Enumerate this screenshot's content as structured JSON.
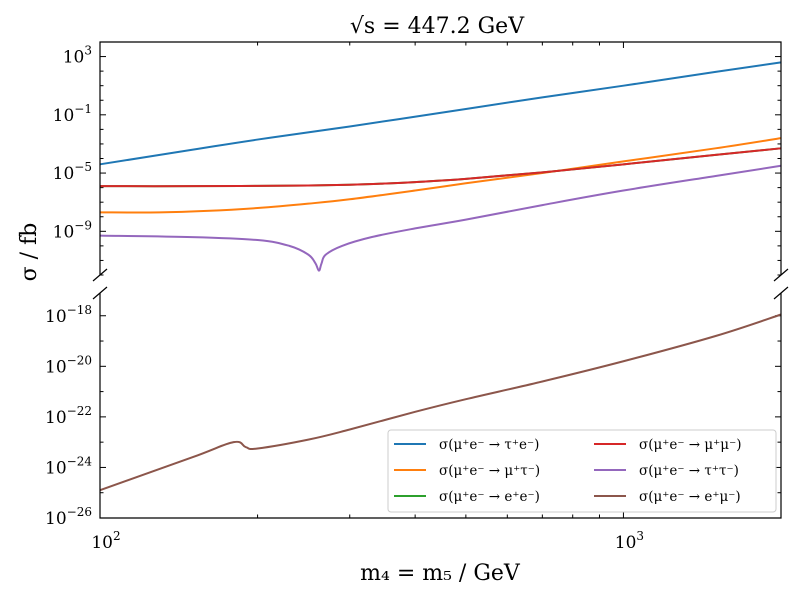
{
  "chart_data": {
    "type": "line",
    "title": "√s = 447.2 GeV",
    "xlabel": "m₄ = m₅ / GeV",
    "ylabel": "σ / fb",
    "xscale": "log",
    "yscale": "log",
    "xlim": [
      100,
      2000
    ],
    "x_ticks": [
      {
        "base": "10",
        "exp": "2",
        "value": 100
      },
      {
        "base": "10",
        "exp": "3",
        "value": 1000
      }
    ],
    "top_panel": {
      "ylim_log10": [
        -12,
        4
      ],
      "y_ticks": [
        {
          "base": "10",
          "exp": "3",
          "log": 3
        },
        {
          "base": "10",
          "exp": "−1",
          "log": -1
        },
        {
          "base": "10",
          "exp": "−5",
          "log": -5
        },
        {
          "base": "10",
          "exp": "−9",
          "log": -9
        }
      ]
    },
    "bottom_panel": {
      "ylim_log10": [
        -26,
        -17.1
      ],
      "y_ticks": [
        {
          "base": "10",
          "exp": "−18",
          "log": -18
        },
        {
          "base": "10",
          "exp": "−20",
          "log": -20
        },
        {
          "base": "10",
          "exp": "−22",
          "log": -22
        },
        {
          "base": "10",
          "exp": "−24",
          "log": -24
        },
        {
          "base": "10",
          "exp": "−26",
          "log": -26
        }
      ]
    },
    "series": [
      {
        "name": "σ(μ⁺e⁻ → τ⁺e⁻)",
        "color": "#1f77b4",
        "panel": "top",
        "x": [
          100,
          150,
          200,
          300,
          500,
          700,
          1000,
          1500,
          2000
        ],
        "log10_y": [
          -4.4,
          -3.4,
          -2.7,
          -1.8,
          -0.6,
          0.2,
          1.0,
          1.95,
          2.6
        ]
      },
      {
        "name": "σ(μ⁺e⁻ → μ⁺τ⁻)",
        "color": "#ff7f0e",
        "panel": "top",
        "x": [
          100,
          130,
          160,
          200,
          250,
          300,
          400,
          500,
          700,
          1000,
          1500,
          2000
        ],
        "log10_y": [
          -7.7,
          -7.7,
          -7.6,
          -7.4,
          -7.1,
          -6.8,
          -6.2,
          -5.7,
          -5.0,
          -4.2,
          -3.3,
          -2.6
        ]
      },
      {
        "name": "σ(μ⁺e⁻ → e⁺e⁻)",
        "color": "#2ca02c",
        "panel": "top",
        "x": [
          100,
          150,
          200,
          250,
          300,
          350,
          400,
          500,
          700,
          1000,
          1500,
          2000
        ],
        "log10_y": [
          -5.9,
          -5.9,
          -5.88,
          -5.85,
          -5.8,
          -5.72,
          -5.62,
          -5.4,
          -4.95,
          -4.4,
          -3.75,
          -3.3
        ]
      },
      {
        "name": "σ(μ⁺e⁻ → μ⁺μ⁻)",
        "color": "#d62728",
        "panel": "top",
        "x": [
          100,
          150,
          200,
          250,
          300,
          350,
          400,
          500,
          700,
          1000,
          1500,
          2000
        ],
        "log10_y": [
          -5.9,
          -5.9,
          -5.88,
          -5.85,
          -5.8,
          -5.72,
          -5.62,
          -5.4,
          -4.95,
          -4.4,
          -3.75,
          -3.3
        ]
      },
      {
        "name": "σ(μ⁺e⁻ → τ⁺τ⁻)",
        "color": "#9467bd",
        "panel": "top",
        "x": [
          100,
          150,
          200,
          230,
          250,
          258,
          262,
          265,
          270,
          290,
          330,
          400,
          500,
          700,
          1000,
          1500,
          2000
        ],
        "log10_y": [
          -9.3,
          -9.4,
          -9.6,
          -10.0,
          -10.6,
          -11.2,
          -11.7,
          -11.2,
          -10.6,
          -10.0,
          -9.4,
          -8.8,
          -8.2,
          -7.2,
          -6.2,
          -5.2,
          -4.5
        ]
      },
      {
        "name": "σ(μ⁺e⁻ → e⁺μ⁻)",
        "color": "#8c564b",
        "panel": "bottom",
        "x": [
          100,
          150,
          180,
          190,
          200,
          250,
          300,
          400,
          500,
          700,
          1000,
          1500,
          2000
        ],
        "log10_y": [
          -24.9,
          -23.6,
          -23.0,
          -23.2,
          -23.25,
          -22.9,
          -22.5,
          -21.8,
          -21.3,
          -20.6,
          -19.8,
          -18.8,
          -17.95
        ]
      }
    ]
  }
}
